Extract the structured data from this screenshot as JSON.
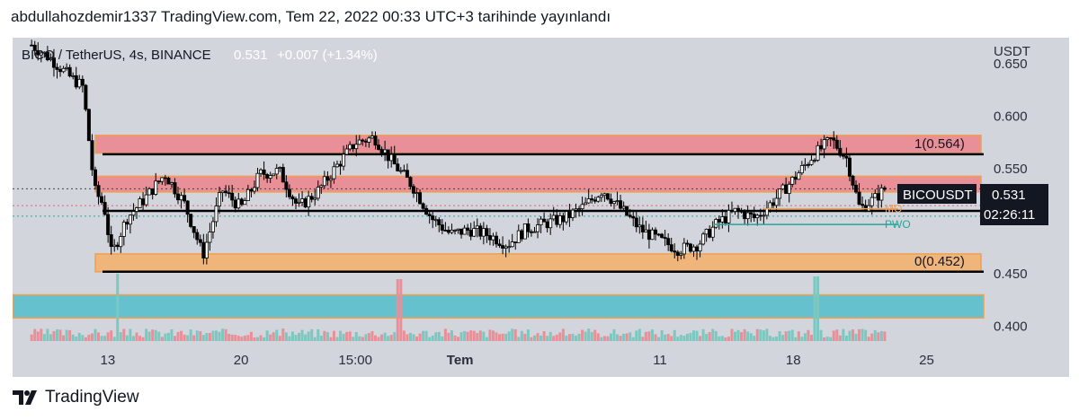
{
  "header": {
    "title": "abdullahozdemir1337 TradingView.com, Tem 22, 2022 00:33 UTC+3 tarihinde yayınlandı"
  },
  "footer": {
    "brand": "TradingView",
    "logo_icon": "tradingview-logo-icon"
  },
  "chart_data": {
    "type": "candlestick",
    "symbol": "BICO / TetherUS, 4s, BINANCE",
    "last_price": "0.531",
    "change": "+0.007 (+1.34%)",
    "ticker": "BICOUSDT",
    "countdown": "02:26:11",
    "currency": "USDT",
    "y_ticks": [
      0.65,
      0.6,
      0.55,
      0.45,
      0.4
    ],
    "y_tick_labels": [
      "0.650",
      "0.600",
      "0.550",
      "0.450",
      "0.400"
    ],
    "y_range": [
      0.38,
      0.675
    ],
    "x_ticks": [
      {
        "label": "13",
        "bold": false
      },
      {
        "label": "20",
        "bold": false
      },
      {
        "label": "15:00",
        "bold": false
      },
      {
        "label": "Tem",
        "bold": true
      },
      {
        "label": "11",
        "bold": false
      },
      {
        "label": "18",
        "bold": false
      },
      {
        "label": "25",
        "bold": false
      }
    ],
    "x_tick_days": [
      4,
      11,
      17,
      22.5,
      33,
      40,
      47
    ],
    "x_range": [
      -1,
      50
    ],
    "fib_levels": [
      {
        "label": "1(0.564)",
        "value": 0.564
      },
      {
        "label": "0(0.452)",
        "value": 0.452
      }
    ],
    "horizontal_lines": [
      0.564,
      0.51,
      0.452
    ],
    "zones": [
      {
        "from": 0.565,
        "to": 0.582,
        "color": "#e88f98"
      },
      {
        "from": 0.528,
        "to": 0.543,
        "color": "#e88f98"
      },
      {
        "from": 0.452,
        "to": 0.469,
        "color": "#f0b57a"
      },
      {
        "from": 0.408,
        "to": 0.43,
        "color": "#66c1cf"
      }
    ],
    "reference_labels": [
      {
        "label": "PWO",
        "value": 0.497,
        "color": "#26a69a"
      },
      {
        "label": "MO",
        "value": 0.512,
        "color": "#f0a050"
      }
    ],
    "price_path": [
      [
        0,
        0.668
      ],
      [
        1,
        0.655
      ],
      [
        2,
        0.638
      ],
      [
        2.7,
        0.628
      ],
      [
        3.3,
        0.53
      ],
      [
        3.8,
        0.515
      ],
      [
        4.2,
        0.468
      ],
      [
        5,
        0.503
      ],
      [
        6,
        0.523
      ],
      [
        7,
        0.545
      ],
      [
        8,
        0.518
      ],
      [
        9,
        0.468
      ],
      [
        10,
        0.53
      ],
      [
        11,
        0.513
      ],
      [
        12,
        0.545
      ],
      [
        13,
        0.548
      ],
      [
        14,
        0.513
      ],
      [
        15,
        0.528
      ],
      [
        16,
        0.552
      ],
      [
        17,
        0.575
      ],
      [
        18,
        0.58
      ],
      [
        19,
        0.555
      ],
      [
        20,
        0.534
      ],
      [
        21,
        0.503
      ],
      [
        22,
        0.488
      ],
      [
        23,
        0.492
      ],
      [
        24,
        0.487
      ],
      [
        25,
        0.478
      ],
      [
        26,
        0.493
      ],
      [
        27,
        0.498
      ],
      [
        28,
        0.503
      ],
      [
        29,
        0.514
      ],
      [
        30,
        0.53
      ],
      [
        31,
        0.511
      ],
      [
        32,
        0.492
      ],
      [
        33,
        0.482
      ],
      [
        34,
        0.473
      ],
      [
        35,
        0.478
      ],
      [
        36,
        0.498
      ],
      [
        37,
        0.51
      ],
      [
        38,
        0.503
      ],
      [
        39,
        0.52
      ],
      [
        40,
        0.54
      ],
      [
        41,
        0.562
      ],
      [
        42,
        0.578
      ],
      [
        42.8,
        0.56
      ],
      [
        43.5,
        0.512
      ],
      [
        44.3,
        0.522
      ],
      [
        44.8,
        0.531
      ]
    ],
    "volume_spikes": [
      {
        "day": 4.5,
        "height": 0.25
      },
      {
        "day": 19.3,
        "height": 0.23
      },
      {
        "day": 41.2,
        "height": 0.24
      }
    ]
  }
}
